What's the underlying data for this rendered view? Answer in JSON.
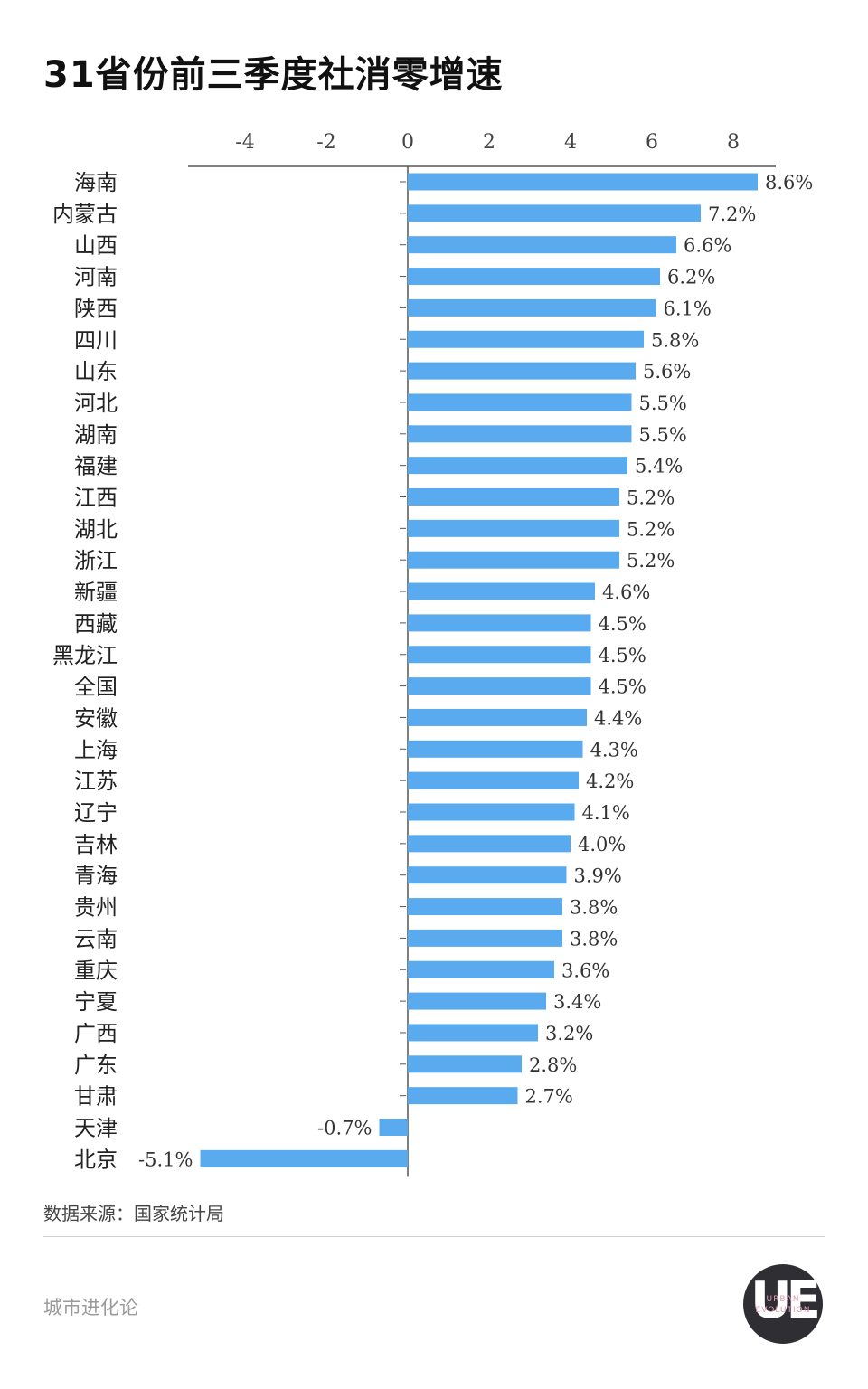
{
  "title": "31省份前三季度社消零增速",
  "source": "数据来源：国家统计局",
  "brand": "城市进化论",
  "logo": {
    "main": "UE",
    "line1": "URBAN",
    "line2": "EVOLUTION"
  },
  "colors": {
    "bar": "#5aaaf0",
    "axis": "#555555",
    "title": "#111111"
  },
  "chart_data": {
    "type": "bar",
    "orientation": "horizontal",
    "title": "31省份前三季度社消零增速",
    "xlabel": "",
    "ylabel": "",
    "xlim": [
      -5.35,
      9.1
    ],
    "x_ticks": [
      -4,
      -2,
      0,
      2,
      4,
      6,
      8
    ],
    "x_tick_labels": [
      "-4",
      "-2",
      "0",
      "2",
      "4",
      "6",
      "8"
    ],
    "grid": false,
    "legend": "none",
    "categories": [
      "海南",
      "内蒙古",
      "山西",
      "河南",
      "陕西",
      "四川",
      "山东",
      "河北",
      "湖南",
      "福建",
      "江西",
      "湖北",
      "浙江",
      "新疆",
      "西藏",
      "黑龙江",
      "全国",
      "安徽",
      "上海",
      "江苏",
      "辽宁",
      "吉林",
      "青海",
      "贵州",
      "云南",
      "重庆",
      "宁夏",
      "广西",
      "广东",
      "甘肃",
      "天津",
      "北京"
    ],
    "values": [
      8.6,
      7.2,
      6.6,
      6.2,
      6.1,
      5.8,
      5.6,
      5.5,
      5.5,
      5.4,
      5.2,
      5.2,
      5.2,
      4.6,
      4.5,
      4.5,
      4.5,
      4.4,
      4.3,
      4.2,
      4.1,
      4.0,
      3.9,
      3.8,
      3.8,
      3.6,
      3.4,
      3.2,
      2.8,
      2.7,
      -0.7,
      -5.1
    ],
    "data_labels": [
      "8.6%",
      "7.2%",
      "6.6%",
      "6.2%",
      "6.1%",
      "5.8%",
      "5.6%",
      "5.5%",
      "5.5%",
      "5.4%",
      "5.2%",
      "5.2%",
      "5.2%",
      "4.6%",
      "4.5%",
      "4.5%",
      "4.5%",
      "4.4%",
      "4.3%",
      "4.2%",
      "4.1%",
      "4.0%",
      "3.9%",
      "3.8%",
      "3.8%",
      "3.6%",
      "3.4%",
      "3.2%",
      "2.8%",
      "2.7%",
      "-0.7%",
      "-5.1%"
    ]
  }
}
